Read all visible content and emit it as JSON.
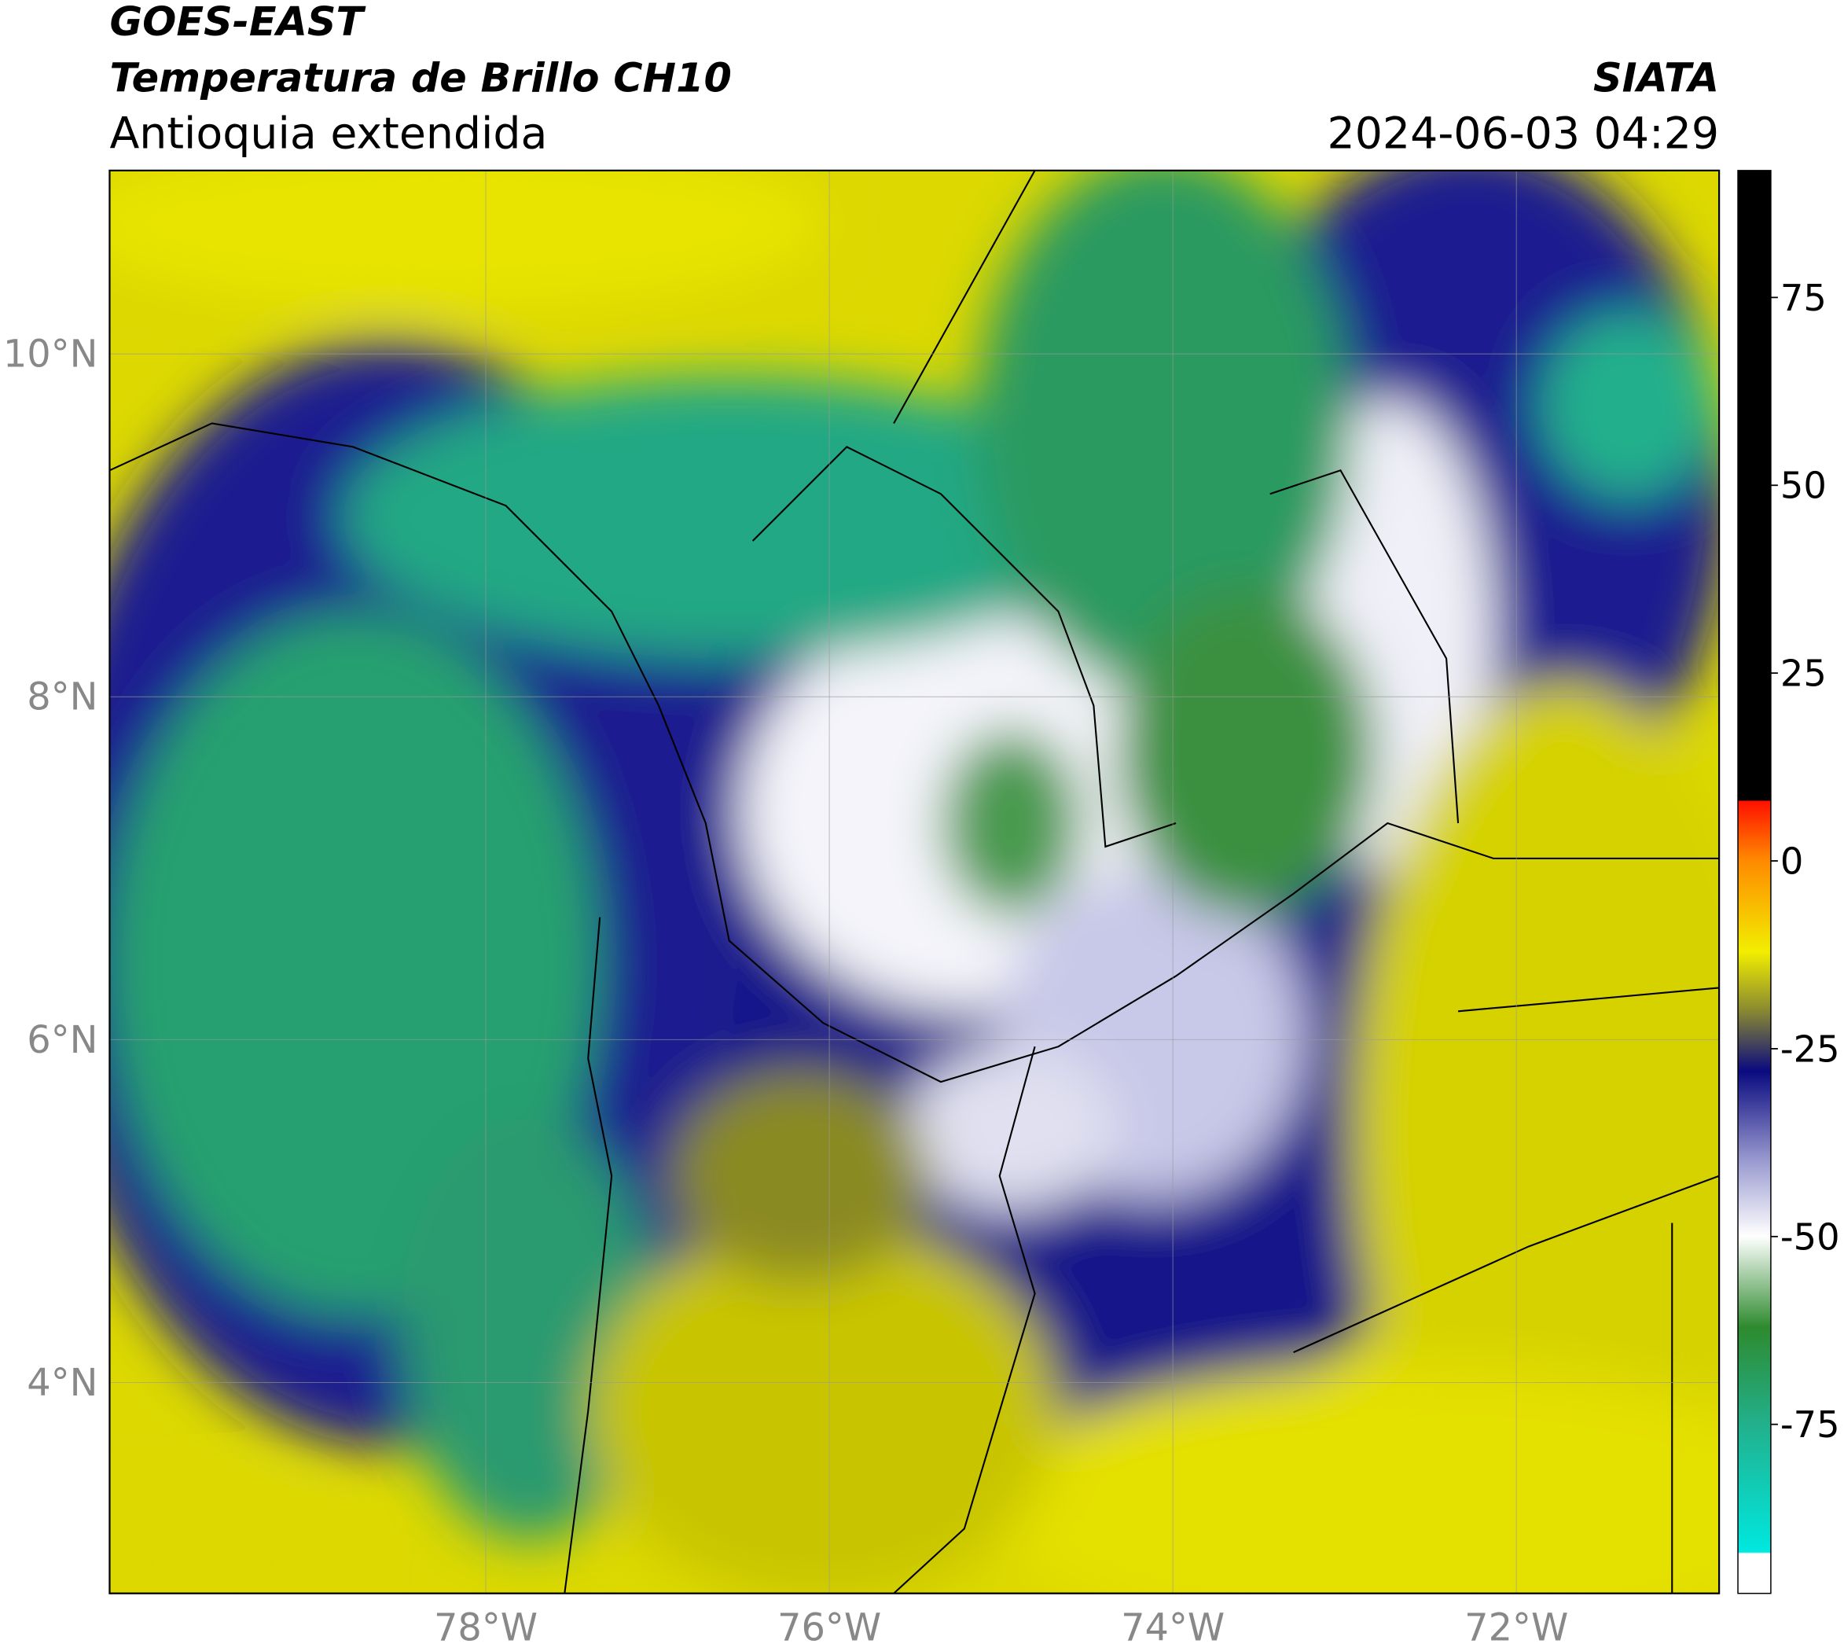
{
  "header": {
    "title": "GOES-EAST",
    "subtitle": "Temperatura de Brillo CH10",
    "region": "Antioquia extendida",
    "source": "SIATA",
    "timestamp": "2024-06-03 04:29"
  },
  "map": {
    "xlim": [
      -80.19,
      -70.82
    ],
    "ylim": [
      2.77,
      11.07
    ],
    "xticks": [
      {
        "value": -78,
        "label": "78°W"
      },
      {
        "value": -76,
        "label": "76°W"
      },
      {
        "value": -74,
        "label": "74°W"
      },
      {
        "value": -72,
        "label": "72°W"
      }
    ],
    "yticks": [
      {
        "value": 10,
        "label": "10°N"
      },
      {
        "value": 8,
        "label": "8°N"
      },
      {
        "value": 6,
        "label": "6°N"
      },
      {
        "value": 4,
        "label": "4°N"
      }
    ],
    "grid": true
  },
  "colorbar": {
    "ylim": [
      -97.5,
      91.9
    ],
    "yticks": [
      75,
      50,
      25,
      0,
      -25,
      -50,
      -75
    ]
  }
}
